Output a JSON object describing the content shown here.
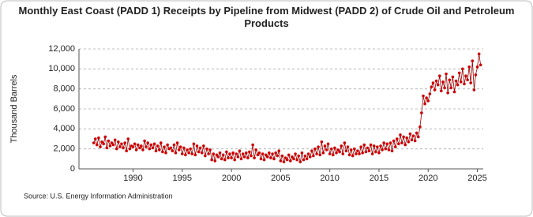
{
  "chart_data": {
    "type": "line",
    "title": "Monthly East Coast (PADD 1) Receipts by Pipeline from Midwest (PADD 2) of Crude Oil and Petroleum Products",
    "y_label": "Thousand Barrels",
    "source": "Source: U.S. Energy Information Administration",
    "xlim": [
      1984.5,
      2025.6
    ],
    "xticks": [
      1990,
      1995,
      2000,
      2005,
      2010,
      2015,
      2020,
      2025
    ],
    "ylim": [
      0,
      12000
    ],
    "yticks": [
      0,
      {
        "value": 2000,
        "label": "2,000"
      },
      {
        "value": 4000,
        "label": "4,000"
      },
      {
        "value": 6000,
        "label": "6,000"
      },
      {
        "value": 8000,
        "label": "8,000"
      },
      {
        "value": 10000,
        "label": "10,000"
      },
      {
        "value": 12000,
        "label": "12,000"
      }
    ],
    "grid": true,
    "line_color": "#990000",
    "marker_color": "#cc0000",
    "x": [
      1986,
      1986.17,
      1986.33,
      1986.5,
      1986.67,
      1986.83,
      1987,
      1987.17,
      1987.33,
      1987.5,
      1987.67,
      1987.83,
      1988,
      1988.17,
      1988.33,
      1988.5,
      1988.67,
      1988.83,
      1989,
      1989.17,
      1989.33,
      1989.5,
      1989.67,
      1989.83,
      1990,
      1990.17,
      1990.33,
      1990.5,
      1990.67,
      1990.83,
      1991,
      1991.17,
      1991.33,
      1991.5,
      1991.67,
      1991.83,
      1992,
      1992.17,
      1992.33,
      1992.5,
      1992.67,
      1992.83,
      1993,
      1993.17,
      1993.33,
      1993.5,
      1993.67,
      1993.83,
      1994,
      1994.17,
      1994.33,
      1994.5,
      1994.67,
      1994.83,
      1995,
      1995.17,
      1995.33,
      1995.5,
      1995.67,
      1995.83,
      1996,
      1996.17,
      1996.33,
      1996.5,
      1996.67,
      1996.83,
      1997,
      1997.17,
      1997.33,
      1997.5,
      1997.67,
      1997.83,
      1998,
      1998.17,
      1998.33,
      1998.5,
      1998.67,
      1998.83,
      1999,
      1999.17,
      1999.33,
      1999.5,
      1999.67,
      1999.83,
      2000,
      2000.17,
      2000.33,
      2000.5,
      2000.67,
      2000.83,
      2001,
      2001.17,
      2001.33,
      2001.5,
      2001.67,
      2001.83,
      2002,
      2002.17,
      2002.33,
      2002.5,
      2002.67,
      2002.83,
      2003,
      2003.17,
      2003.33,
      2003.5,
      2003.67,
      2003.83,
      2004,
      2004.17,
      2004.33,
      2004.5,
      2004.67,
      2004.83,
      2005,
      2005.17,
      2005.33,
      2005.5,
      2005.67,
      2005.83,
      2006,
      2006.17,
      2006.33,
      2006.5,
      2006.67,
      2006.83,
      2007,
      2007.17,
      2007.33,
      2007.5,
      2007.67,
      2007.83,
      2008,
      2008.17,
      2008.33,
      2008.5,
      2008.67,
      2008.83,
      2009,
      2009.17,
      2009.33,
      2009.5,
      2009.67,
      2009.83,
      2010,
      2010.17,
      2010.33,
      2010.5,
      2010.67,
      2010.83,
      2011,
      2011.17,
      2011.33,
      2011.5,
      2011.67,
      2011.83,
      2012,
      2012.17,
      2012.33,
      2012.5,
      2012.67,
      2012.83,
      2013,
      2013.17,
      2013.33,
      2013.5,
      2013.67,
      2013.83,
      2014,
      2014.17,
      2014.33,
      2014.5,
      2014.67,
      2014.83,
      2015,
      2015.17,
      2015.33,
      2015.5,
      2015.67,
      2015.83,
      2016,
      2016.17,
      2016.33,
      2016.5,
      2016.67,
      2016.83,
      2017,
      2017.17,
      2017.33,
      2017.5,
      2017.67,
      2017.83,
      2018,
      2018.17,
      2018.33,
      2018.5,
      2018.67,
      2018.83,
      2019,
      2019.17,
      2019.33,
      2019.5,
      2019.67,
      2019.83,
      2020,
      2020.17,
      2020.33,
      2020.5,
      2020.67,
      2020.83,
      2021,
      2021.17,
      2021.33,
      2021.5,
      2021.67,
      2021.83,
      2022,
      2022.17,
      2022.33,
      2022.5,
      2022.67,
      2022.83,
      2023,
      2023.17,
      2023.33,
      2023.5,
      2023.67,
      2023.83,
      2024,
      2024.17,
      2024.33,
      2024.5,
      2024.67,
      2024.83,
      2025,
      2025.17,
      2025.33
    ],
    "values": [
      2600,
      3000,
      2400,
      3100,
      2200,
      2700,
      2500,
      3200,
      2100,
      2800,
      2300,
      2600,
      2400,
      2900,
      2000,
      2700,
      2200,
      2500,
      2100,
      2600,
      1800,
      3000,
      2000,
      2300,
      2200,
      2500,
      1900,
      2400,
      2100,
      2300,
      1900,
      2800,
      2200,
      2600,
      2000,
      2400,
      2100,
      2500,
      1800,
      2300,
      1900,
      2600,
      1700,
      2200,
      1600,
      2400,
      2000,
      2100,
      1800,
      2400,
      1600,
      2600,
      1900,
      2200,
      1500,
      2100,
      1400,
      1900,
      1600,
      2000,
      1500,
      2500,
      1400,
      2300,
      1700,
      2100,
      1600,
      2300,
      1300,
      2000,
      1500,
      1900,
      900,
      1500,
      800,
      1400,
      1200,
      1600,
      1000,
      1400,
      900,
      1700,
      1100,
      1500,
      1100,
      1600,
      900,
      1500,
      1200,
      1800,
      1000,
      1500,
      1200,
      1600,
      1100,
      1700,
      1300,
      2400,
      1100,
      1900,
      1400,
      1600,
      1000,
      1500,
      900,
      1400,
      1200,
      1600,
      1100,
      1500,
      1000,
      1600,
      1300,
      1800,
      800,
      1300,
      700,
      1100,
      900,
      1400,
      800,
      1200,
      1000,
      1500,
      900,
      1300,
      700,
      1600,
      900,
      1300,
      1000,
      1500,
      1200,
      1800,
      1300,
      2000,
      1500,
      2200,
      1400,
      2700,
      1600,
      2300,
      1900,
      2500,
      1500,
      2000,
      1400,
      2100,
      1600,
      1900,
      1700,
      2300,
      1500,
      2600,
      1800,
      2200,
      1400,
      1900,
      1300,
      2000,
      1500,
      1800,
      1500,
      2200,
      1600,
      2400,
      1700,
      2100,
      1800,
      2400,
      1500,
      2300,
      1700,
      2200,
      1600,
      2300,
      1900,
      2600,
      2000,
      2500,
      1900,
      2600,
      1800,
      2800,
      2200,
      3000,
      2500,
      3400,
      2600,
      3200,
      2400,
      3100,
      2700,
      3500,
      2900,
      3300,
      2800,
      3600,
      3200,
      4200,
      5600,
      7300,
      6500,
      7100,
      6800,
      7500,
      8200,
      8600,
      7900,
      8800,
      8400,
      9300,
      7800,
      8700,
      8100,
      9500,
      7600,
      8900,
      8100,
      9200,
      7700,
      8800,
      8400,
      9600,
      8700,
      10000,
      8500,
      9300,
      8900,
      10200,
      8600,
      10800,
      7900,
      9400,
      10200,
      11500,
      10400
    ]
  }
}
